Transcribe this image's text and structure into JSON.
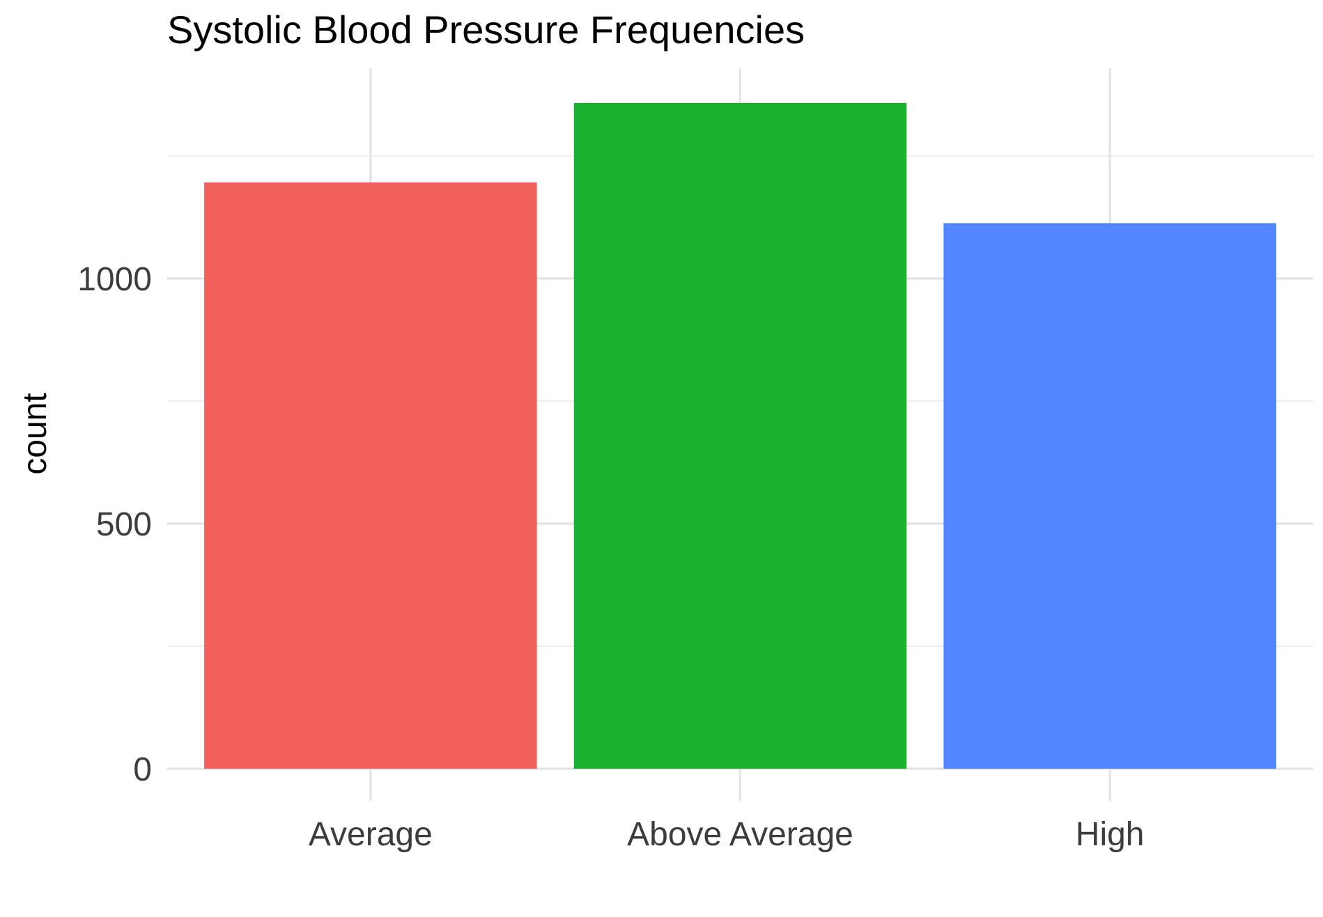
{
  "chart_data": {
    "type": "bar",
    "title": "Systolic Blood Pressure Frequencies",
    "xlabel": "",
    "ylabel": "count",
    "categories": [
      "Average",
      "Above Average",
      "High"
    ],
    "values": [
      1196,
      1358,
      1113
    ],
    "colors": [
      "#F2605C",
      "#1AB22F",
      "#5387FF"
    ],
    "ylim": [
      0,
      1425
    ],
    "y_major_ticks": [
      0,
      500,
      1000
    ],
    "y_minor_ticks": [
      250,
      750,
      1250
    ],
    "y_tick_labels": [
      "0",
      "500",
      "1000"
    ],
    "grid": true,
    "legend": "none"
  }
}
